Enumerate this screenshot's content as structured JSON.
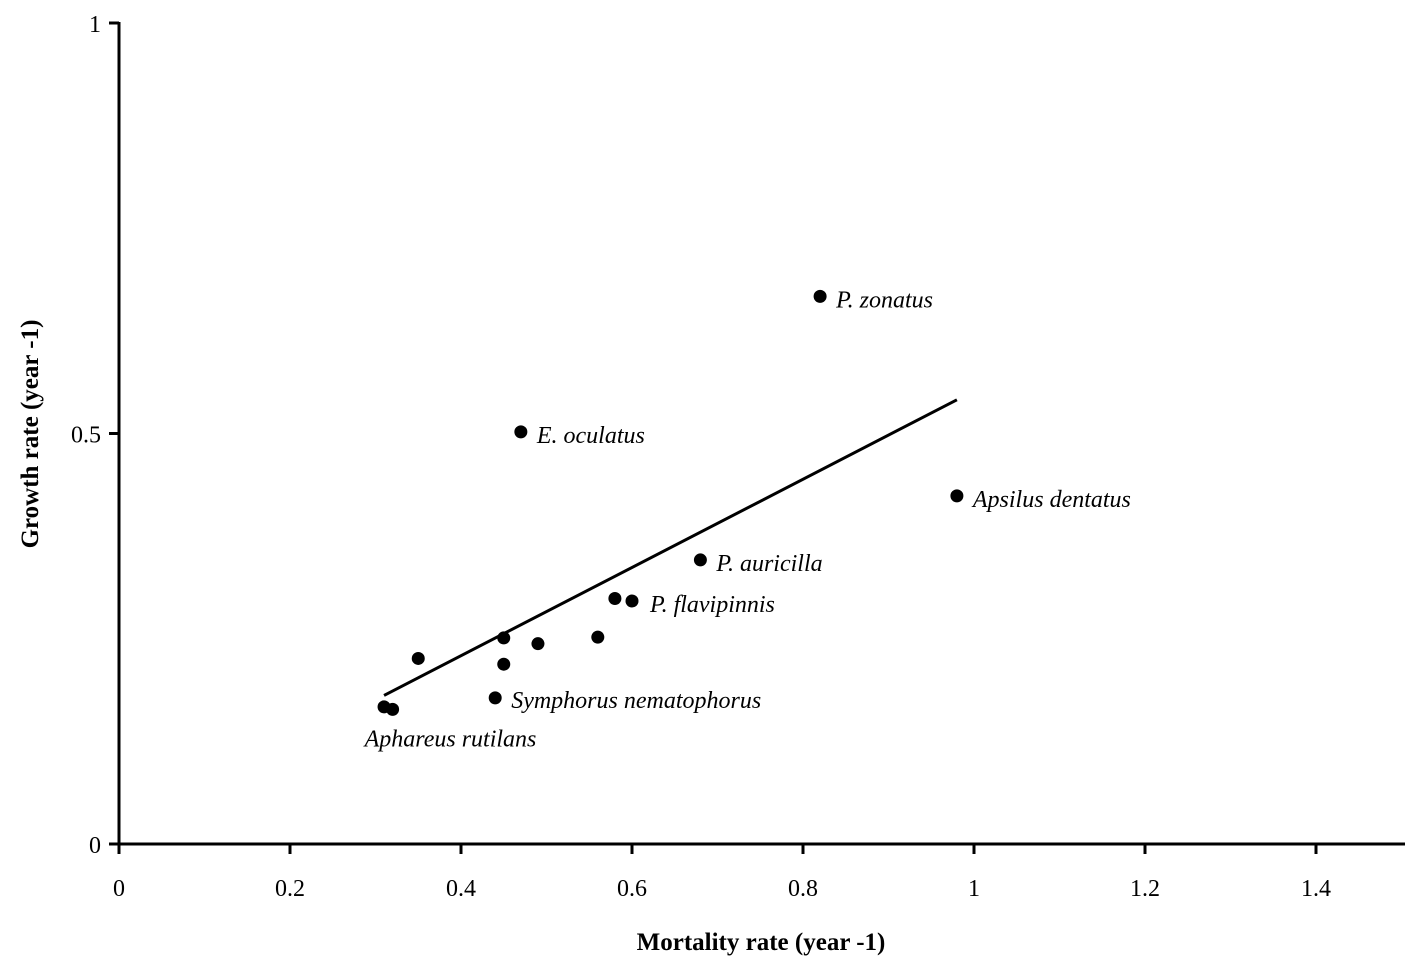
{
  "chart_data": {
    "type": "scatter",
    "title": "",
    "xlabel": "Mortality rate (year -1)",
    "ylabel": "Growth rate (year -1)",
    "xlim": [
      0,
      1.5
    ],
    "ylim": [
      0,
      1
    ],
    "x_ticks": [
      "0",
      "0.2",
      "0.4",
      "0.6",
      "0.8",
      "1",
      "1.2",
      "1.4"
    ],
    "y_ticks": [
      "0",
      "0.5",
      "1"
    ],
    "grid": false,
    "legend": "none",
    "marker_color": "#000000",
    "points": [
      {
        "x": 0.82,
        "y": 0.667,
        "label": "P. zonatus"
      },
      {
        "x": 0.47,
        "y": 0.502,
        "label": "E. oculatus"
      },
      {
        "x": 0.98,
        "y": 0.424,
        "label": "Apsilus dentatus"
      },
      {
        "x": 0.68,
        "y": 0.346,
        "label": "P. auricilla"
      },
      {
        "x": 0.58,
        "y": 0.299,
        "label": ""
      },
      {
        "x": 0.6,
        "y": 0.296,
        "label": "P. flavipinnis"
      },
      {
        "x": 0.56,
        "y": 0.252,
        "label": ""
      },
      {
        "x": 0.45,
        "y": 0.251,
        "label": ""
      },
      {
        "x": 0.49,
        "y": 0.244,
        "label": ""
      },
      {
        "x": 0.35,
        "y": 0.226,
        "label": ""
      },
      {
        "x": 0.45,
        "y": 0.219,
        "label": ""
      },
      {
        "x": 0.44,
        "y": 0.178,
        "label": "Symphorus nematophorus"
      },
      {
        "x": 0.31,
        "y": 0.167,
        "label": ""
      },
      {
        "x": 0.32,
        "y": 0.164,
        "label": "Aphareus rutilans"
      }
    ],
    "trendline": {
      "x": [
        0.31,
        0.98
      ],
      "y": [
        0.181,
        0.541
      ]
    }
  }
}
